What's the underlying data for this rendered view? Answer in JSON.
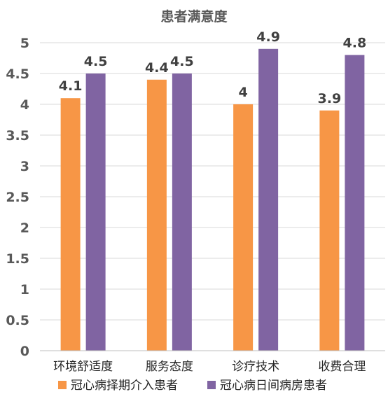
{
  "chart_data": {
    "type": "bar",
    "title": "患者满意度",
    "categories": [
      "环境舒适度",
      "服务态度",
      "诊疗技术",
      "收费合理"
    ],
    "series": [
      {
        "name": "冠心病择期介入患者",
        "values": [
          4.1,
          4.4,
          4.0,
          3.9
        ],
        "color": "#f79646"
      },
      {
        "name": "冠心病日间病房患者",
        "values": [
          4.5,
          4.5,
          4.9,
          4.8
        ],
        "color": "#8064a2"
      }
    ],
    "ylim": [
      0,
      5
    ],
    "yticks": [
      "0",
      "0.5",
      "1",
      "1.5",
      "2",
      "2.5",
      "3",
      "3.5",
      "4",
      "4.5",
      "5"
    ],
    "data_labels": [
      [
        "4.1",
        "4.4",
        "4",
        "3.9"
      ],
      [
        "4.5",
        "4.5",
        "4.9",
        "4.8"
      ]
    ],
    "grid": true,
    "legend": "bottom"
  }
}
